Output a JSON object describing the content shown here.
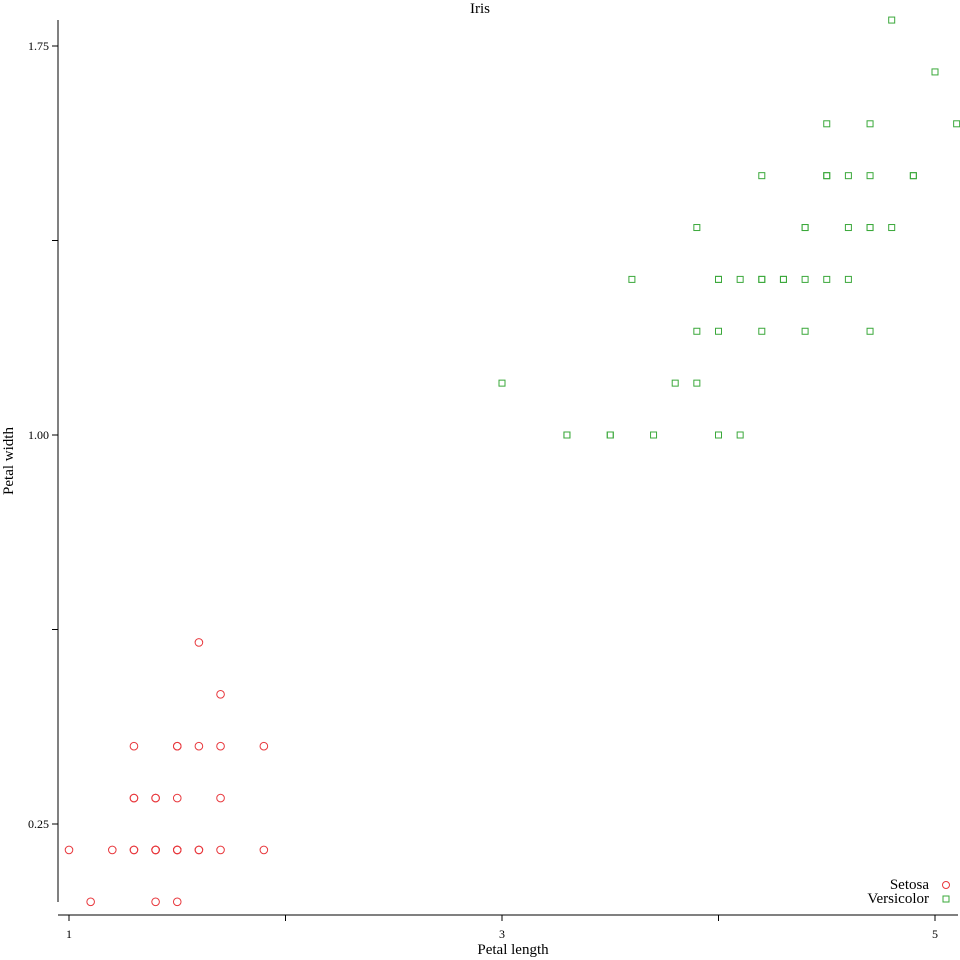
{
  "chart_data": {
    "type": "scatter",
    "title": "Iris",
    "xlabel": "Petal length",
    "ylabel": "Petal width",
    "xlim": [
      1,
      5.05
    ],
    "ylim": [
      0.1,
      1.8
    ],
    "x_ticks": [
      1,
      2,
      3,
      4,
      5
    ],
    "x_tick_labels": [
      "1",
      "",
      "3",
      "",
      "5"
    ],
    "y_ticks": [
      0.25,
      0.625,
      1.0,
      1.375,
      1.75
    ],
    "y_tick_labels": [
      "0.25",
      "",
      "1.00",
      "",
      "1.75"
    ],
    "legend_position": "bottom-right",
    "series": [
      {
        "name": "Setosa",
        "marker": "circle",
        "color": "#e8383d",
        "points": [
          [
            1.0,
            0.2
          ],
          [
            1.1,
            0.1
          ],
          [
            1.2,
            0.2
          ],
          [
            1.3,
            0.2
          ],
          [
            1.3,
            0.2
          ],
          [
            1.3,
            0.3
          ],
          [
            1.3,
            0.3
          ],
          [
            1.3,
            0.4
          ],
          [
            1.4,
            0.1
          ],
          [
            1.4,
            0.2
          ],
          [
            1.4,
            0.2
          ],
          [
            1.4,
            0.2
          ],
          [
            1.4,
            0.3
          ],
          [
            1.4,
            0.3
          ],
          [
            1.5,
            0.1
          ],
          [
            1.5,
            0.2
          ],
          [
            1.5,
            0.2
          ],
          [
            1.5,
            0.2
          ],
          [
            1.5,
            0.3
          ],
          [
            1.5,
            0.4
          ],
          [
            1.5,
            0.4
          ],
          [
            1.6,
            0.2
          ],
          [
            1.6,
            0.2
          ],
          [
            1.6,
            0.4
          ],
          [
            1.6,
            0.6
          ],
          [
            1.7,
            0.2
          ],
          [
            1.7,
            0.3
          ],
          [
            1.7,
            0.4
          ],
          [
            1.7,
            0.5
          ],
          [
            1.9,
            0.2
          ],
          [
            1.9,
            0.4
          ]
        ]
      },
      {
        "name": "Versicolor",
        "marker": "square",
        "color": "#3aa83a",
        "points": [
          [
            3.0,
            1.1
          ],
          [
            3.3,
            1.0
          ],
          [
            3.3,
            1.0
          ],
          [
            3.5,
            1.0
          ],
          [
            3.5,
            1.0
          ],
          [
            3.6,
            1.3
          ],
          [
            3.7,
            1.0
          ],
          [
            3.8,
            1.1
          ],
          [
            3.9,
            1.1
          ],
          [
            3.9,
            1.2
          ],
          [
            3.9,
            1.4
          ],
          [
            4.0,
            1.0
          ],
          [
            4.0,
            1.2
          ],
          [
            4.0,
            1.3
          ],
          [
            4.0,
            1.3
          ],
          [
            4.1,
            1.0
          ],
          [
            4.1,
            1.3
          ],
          [
            4.2,
            1.2
          ],
          [
            4.2,
            1.3
          ],
          [
            4.2,
            1.3
          ],
          [
            4.2,
            1.5
          ],
          [
            4.3,
            1.3
          ],
          [
            4.3,
            1.3
          ],
          [
            4.4,
            1.2
          ],
          [
            4.4,
            1.3
          ],
          [
            4.4,
            1.4
          ],
          [
            4.4,
            1.4
          ],
          [
            4.5,
            1.3
          ],
          [
            4.5,
            1.5
          ],
          [
            4.5,
            1.5
          ],
          [
            4.5,
            1.6
          ],
          [
            4.6,
            1.3
          ],
          [
            4.6,
            1.4
          ],
          [
            4.6,
            1.5
          ],
          [
            4.7,
            1.2
          ],
          [
            4.7,
            1.4
          ],
          [
            4.7,
            1.4
          ],
          [
            4.7,
            1.5
          ],
          [
            4.7,
            1.6
          ],
          [
            4.8,
            1.4
          ],
          [
            4.8,
            1.8
          ],
          [
            4.9,
            1.5
          ],
          [
            4.9,
            1.5
          ],
          [
            5.0,
            1.7
          ],
          [
            5.1,
            1.6
          ]
        ]
      }
    ]
  }
}
